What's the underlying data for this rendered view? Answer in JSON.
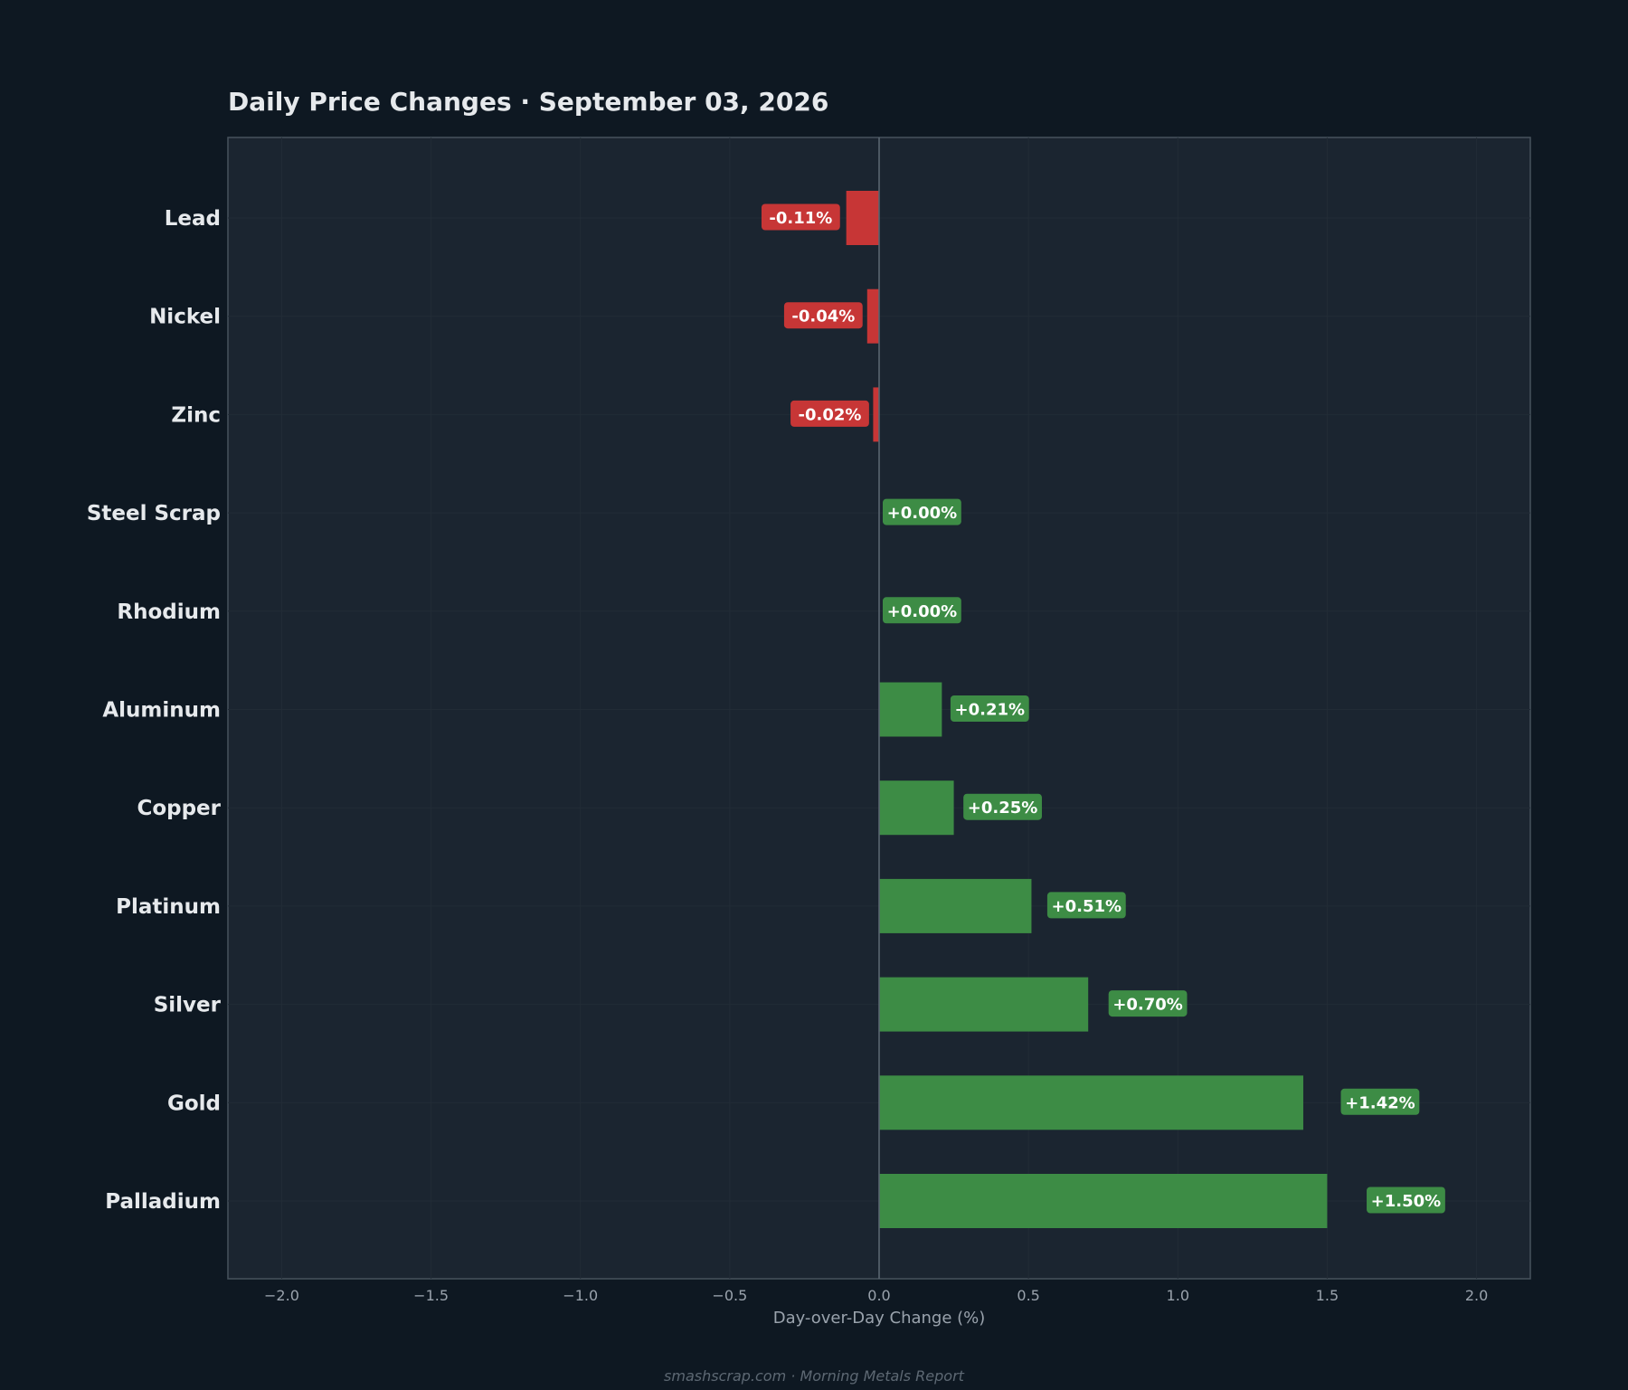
{
  "chart_data": {
    "type": "bar",
    "orientation": "horizontal",
    "title": "Daily Price Changes  ·  September 03, 2026",
    "xlabel": "Day-over-Day Change (%)",
    "ylabel": "",
    "categories": [
      "Lead",
      "Nickel",
      "Zinc",
      "Steel Scrap",
      "Rhodium",
      "Aluminum",
      "Copper",
      "Platinum",
      "Silver",
      "Gold",
      "Palladium"
    ],
    "values": [
      -0.11,
      -0.04,
      -0.02,
      0.0,
      0.0,
      0.21,
      0.25,
      0.51,
      0.7,
      1.42,
      1.5
    ],
    "data_labels": [
      "-0.11%",
      "-0.04%",
      "-0.02%",
      "+0.00%",
      "+0.00%",
      "+0.21%",
      "+0.25%",
      "+0.51%",
      "+0.70%",
      "+1.42%",
      "+1.50%"
    ],
    "xlim": [
      -2.18,
      2.18
    ],
    "xticks": [
      -2.0,
      -1.5,
      -1.0,
      -0.5,
      0.0,
      0.5,
      1.0,
      1.5,
      2.0
    ],
    "xtick_labels": [
      "−2.0",
      "−1.5",
      "−1.0",
      "−0.5",
      "0.0",
      "0.5",
      "1.0",
      "1.5",
      "2.0"
    ],
    "grid": true,
    "colors": {
      "positive": "#3d8c45",
      "negative": "#c73636",
      "background": "#0e1822",
      "plot_background": "#1b2530",
      "frame": "#47525c",
      "grid": "#222c36"
    }
  },
  "footer": "smashscrap.com  ·  Morning Metals Report"
}
